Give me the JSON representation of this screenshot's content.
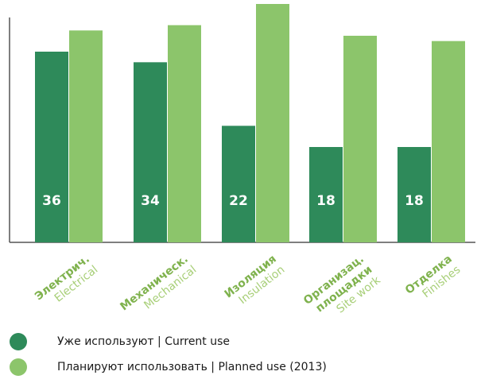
{
  "chart_data": {
    "type": "bar",
    "categories": [
      {
        "ru": "Электрич.",
        "en": "Electrical"
      },
      {
        "ru": "Механическ.",
        "en": "Mechanical"
      },
      {
        "ru": "Изоляция",
        "en": "Insulation"
      },
      {
        "ru": "Организац. площадки",
        "en": "Site work"
      },
      {
        "ru": "Отделка",
        "en": "Finishes"
      }
    ],
    "series": [
      {
        "name": "Уже используют | Current use",
        "color": "#2e8a5a",
        "values": [
          36,
          34,
          22,
          18,
          18
        ]
      },
      {
        "name": "Планируют использовать | Planned use (2013)",
        "color": "#8cc56b",
        "values": [
          40,
          41,
          45,
          39,
          38
        ]
      }
    ],
    "data_labels": [
      "36",
      "34",
      "22",
      "18",
      "18"
    ],
    "ylim": [
      0,
      50
    ],
    "grid": false,
    "legend_position": "bottom-left"
  }
}
